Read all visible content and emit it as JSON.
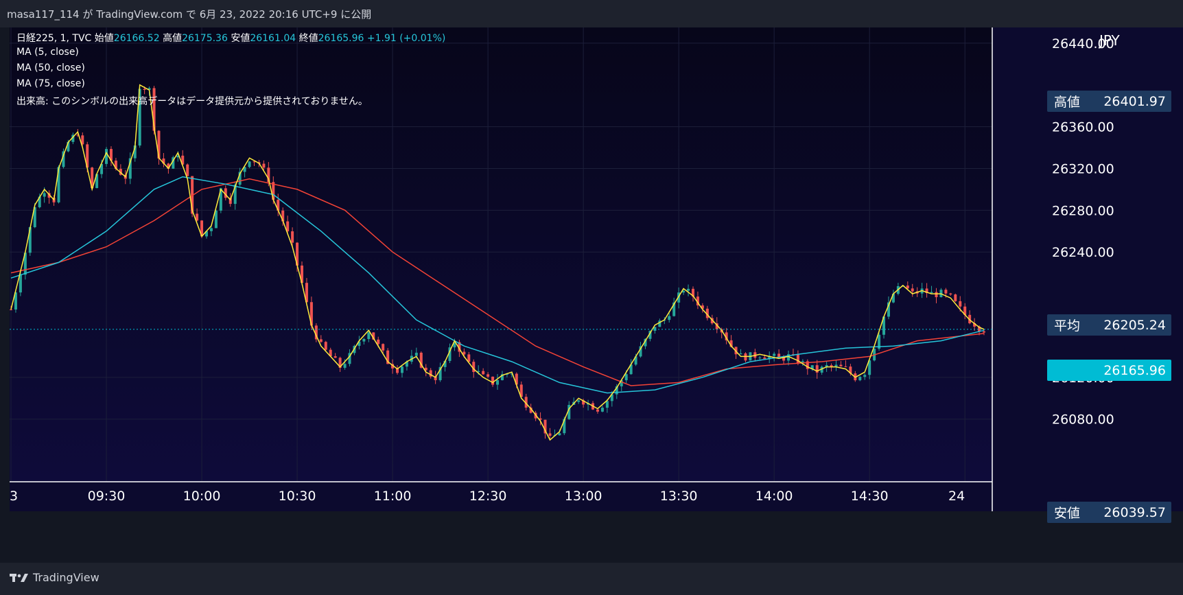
{
  "header": {
    "publish_text": "masa117_114 が TradingView.com で 6月 23, 2022 20:16 UTC+9 に公開"
  },
  "legend": {
    "symbol": "日経225, 1, TVC",
    "open_label": "始値",
    "open": "26166.52",
    "high_label": "高値",
    "high": "26175.36",
    "low_label": "安値",
    "low": "26161.04",
    "close_label": "終値",
    "close": "26165.96",
    "change": "+1.91 (+0.01%)",
    "ma5": "MA (5, close)",
    "ma50": "MA (50, close)",
    "ma75": "MA (75, close)",
    "volume_note": "出来高: このシンボルの出来高データはデータ提供元から提供されておりません。"
  },
  "price_scale": {
    "currency": "JPY",
    "high_tag_label": "高値",
    "high_tag_value": "26401.97",
    "avg_tag_label": "平均",
    "avg_tag_value": "26205.24",
    "last_tag_value": "26165.96",
    "low_tag_label": "安値",
    "low_tag_value": "26039.57"
  },
  "footer": {
    "brand": "TradingView"
  },
  "colors": {
    "up": "#26a69a",
    "down": "#ef5350",
    "ma5": "#ffeb3b",
    "ma50": "#26c6da",
    "ma75": "#f44336",
    "tag_bg": "#1e3a5f",
    "last_tag_bg": "#00bcd4"
  },
  "chart_data": {
    "type": "candlestick",
    "x_ticks": [
      "3",
      "09:30",
      "10:00",
      "10:30",
      "11:00",
      "12:30",
      "13:00",
      "13:30",
      "14:00",
      "14:30",
      "24"
    ],
    "y_ticks": [
      26440,
      26360,
      26320,
      26280,
      26240,
      26120,
      26080
    ],
    "y_range": [
      26020,
      26455
    ],
    "close_path": [
      [
        0,
        26185
      ],
      [
        3,
        26240
      ],
      [
        5,
        26285
      ],
      [
        7,
        26300
      ],
      [
        9,
        26290
      ],
      [
        10,
        26320
      ],
      [
        12,
        26345
      ],
      [
        14,
        26355
      ],
      [
        15,
        26340
      ],
      [
        17,
        26300
      ],
      [
        18,
        26315
      ],
      [
        20,
        26335
      ],
      [
        22,
        26320
      ],
      [
        24,
        26312
      ],
      [
        26,
        26340
      ],
      [
        27,
        26400
      ],
      [
        29,
        26395
      ],
      [
        30,
        26360
      ],
      [
        31,
        26330
      ],
      [
        33,
        26320
      ],
      [
        35,
        26335
      ],
      [
        37,
        26310
      ],
      [
        38,
        26280
      ],
      [
        40,
        26255
      ],
      [
        42,
        26265
      ],
      [
        44,
        26300
      ],
      [
        46,
        26290
      ],
      [
        48,
        26315
      ],
      [
        50,
        26330
      ],
      [
        52,
        26325
      ],
      [
        54,
        26310
      ],
      [
        55,
        26290
      ],
      [
        57,
        26270
      ],
      [
        59,
        26245
      ],
      [
        61,
        26210
      ],
      [
        63,
        26170
      ],
      [
        65,
        26150
      ],
      [
        67,
        26140
      ],
      [
        69,
        26130
      ],
      [
        71,
        26140
      ],
      [
        73,
        26155
      ],
      [
        75,
        26165
      ],
      [
        77,
        26150
      ],
      [
        79,
        26135
      ],
      [
        81,
        26128
      ],
      [
        83,
        26135
      ],
      [
        85,
        26140
      ],
      [
        87,
        26125
      ],
      [
        89,
        26120
      ],
      [
        91,
        26135
      ],
      [
        93,
        26155
      ],
      [
        95,
        26140
      ],
      [
        97,
        26128
      ],
      [
        99,
        26120
      ],
      [
        101,
        26115
      ],
      [
        103,
        26122
      ],
      [
        105,
        26125
      ],
      [
        107,
        26100
      ],
      [
        109,
        26090
      ],
      [
        111,
        26078
      ],
      [
        113,
        26060
      ],
      [
        115,
        26068
      ],
      [
        117,
        26090
      ],
      [
        119,
        26100
      ],
      [
        121,
        26095
      ],
      [
        123,
        26090
      ],
      [
        125,
        26098
      ],
      [
        127,
        26110
      ],
      [
        129,
        26125
      ],
      [
        131,
        26140
      ],
      [
        133,
        26155
      ],
      [
        135,
        26170
      ],
      [
        137,
        26175
      ],
      [
        139,
        26190
      ],
      [
        141,
        26205
      ],
      [
        143,
        26198
      ],
      [
        145,
        26185
      ],
      [
        147,
        26175
      ],
      [
        149,
        26165
      ],
      [
        151,
        26150
      ],
      [
        153,
        26140
      ],
      [
        155,
        26140
      ],
      [
        157,
        26142
      ],
      [
        159,
        26140
      ],
      [
        161,
        26138
      ],
      [
        163,
        26140
      ],
      [
        165,
        26136
      ],
      [
        167,
        26130
      ],
      [
        169,
        26126
      ],
      [
        171,
        26130
      ],
      [
        173,
        26130
      ],
      [
        175,
        26128
      ],
      [
        177,
        26120
      ],
      [
        179,
        26125
      ],
      [
        181,
        26150
      ],
      [
        183,
        26178
      ],
      [
        185,
        26200
      ],
      [
        187,
        26208
      ],
      [
        189,
        26200
      ],
      [
        191,
        26203
      ],
      [
        193,
        26200
      ],
      [
        195,
        26200
      ],
      [
        197,
        26196
      ],
      [
        199,
        26185
      ],
      [
        201,
        26175
      ],
      [
        203,
        26168
      ],
      [
        204,
        26166
      ]
    ],
    "ma50_path": [
      [
        0,
        26215
      ],
      [
        10,
        26230
      ],
      [
        20,
        26260
      ],
      [
        30,
        26300
      ],
      [
        36,
        26312
      ],
      [
        45,
        26305
      ],
      [
        55,
        26295
      ],
      [
        65,
        26260
      ],
      [
        75,
        26220
      ],
      [
        85,
        26175
      ],
      [
        95,
        26150
      ],
      [
        105,
        26135
      ],
      [
        115,
        26115
      ],
      [
        125,
        26105
      ],
      [
        135,
        26108
      ],
      [
        145,
        26120
      ],
      [
        155,
        26135
      ],
      [
        165,
        26142
      ],
      [
        175,
        26148
      ],
      [
        185,
        26150
      ],
      [
        195,
        26155
      ],
      [
        204,
        26165
      ]
    ],
    "ma75_path": [
      [
        0,
        26220
      ],
      [
        10,
        26230
      ],
      [
        20,
        26245
      ],
      [
        30,
        26270
      ],
      [
        40,
        26300
      ],
      [
        50,
        26310
      ],
      [
        60,
        26300
      ],
      [
        70,
        26280
      ],
      [
        80,
        26240
      ],
      [
        90,
        26210
      ],
      [
        100,
        26180
      ],
      [
        110,
        26150
      ],
      [
        120,
        26130
      ],
      [
        130,
        26112
      ],
      [
        140,
        26115
      ],
      [
        150,
        26128
      ],
      [
        160,
        26132
      ],
      [
        170,
        26135
      ],
      [
        180,
        26140
      ],
      [
        190,
        26155
      ],
      [
        204,
        26162
      ]
    ],
    "x_count": 205
  }
}
